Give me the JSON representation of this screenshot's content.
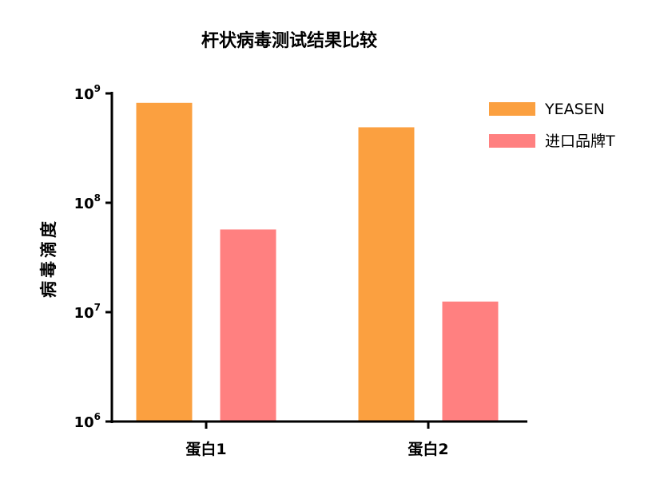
{
  "chart_data": {
    "type": "bar",
    "title": "杆状病毒测试结果比较",
    "xlabel": "",
    "ylabel": "病毒滴度",
    "yscale": "log",
    "ylim": [
      1000000,
      1000000000
    ],
    "y_ticks": [
      {
        "value": 1000000,
        "base": "10",
        "exp": "6"
      },
      {
        "value": 10000000,
        "base": "10",
        "exp": "7"
      },
      {
        "value": 100000000,
        "base": "10",
        "exp": "8"
      },
      {
        "value": 1000000000,
        "base": "10",
        "exp": "9"
      }
    ],
    "categories": [
      "蛋白1",
      "蛋白2"
    ],
    "series": [
      {
        "name": "YEASEN",
        "color": "#FBA040",
        "values": [
          820000000,
          490000000
        ]
      },
      {
        "name": "进口品牌T",
        "color": "#FF8080",
        "values": [
          57000000,
          12500000
        ]
      }
    ],
    "grid": false,
    "legend_position": "top-right"
  }
}
